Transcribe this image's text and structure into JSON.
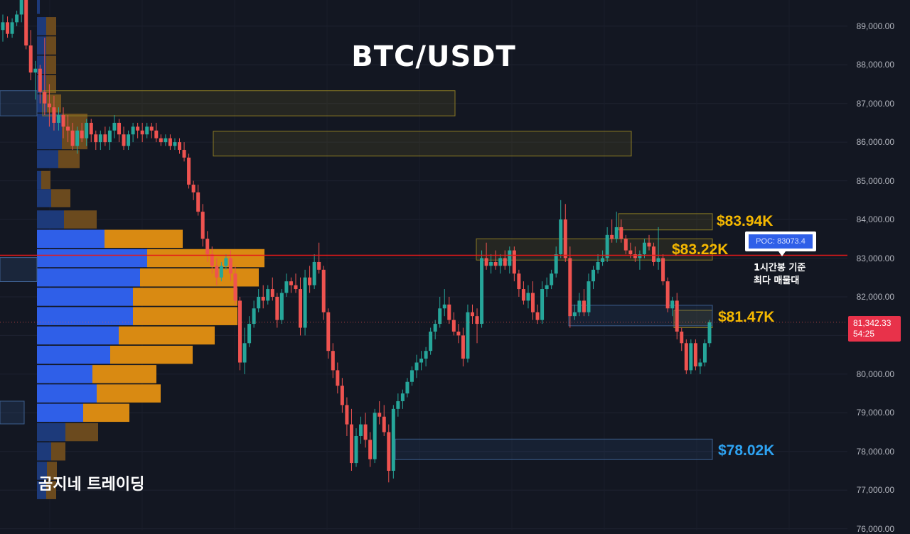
{
  "header": {
    "title": "BTC/USDT"
  },
  "brand": {
    "label": "곰지네 트레이딩"
  },
  "chart_data": {
    "type": "candlestick",
    "title": "BTC/USDT",
    "timeframe_note": "1시간봉 기준",
    "y_axis": {
      "range": [
        76000,
        89800
      ],
      "ticks": [
        89000,
        88000,
        87000,
        86000,
        85000,
        84000,
        83000,
        82000,
        81000,
        80000,
        79000,
        78000,
        77000,
        76000
      ],
      "tick_labels": [
        "89,000.00",
        "88,000.00",
        "87,000.00",
        "86,000.00",
        "85,000.00",
        "84,000.00",
        "83,000.00",
        "82,000.00",
        "81,000.00",
        "80,000.00",
        "79,000.00",
        "78,000.00",
        "77,000.00",
        "76,000.00"
      ]
    },
    "current_price": {
      "value": 81342.33,
      "label": "81,342.33",
      "countdown": "54:25"
    },
    "poc": {
      "value": 83073.4,
      "badge": "POC: 83073.4",
      "note_line1": "1시간봉 기준",
      "note_line2": "최다 매물대"
    },
    "levels": [
      {
        "label": "$83.94K",
        "value": 83940,
        "color": "#f5b800"
      },
      {
        "label": "$83.22K",
        "value": 83220,
        "color": "#f5b800"
      },
      {
        "label": "$81.47K",
        "value": 81470,
        "color": "#f5b800"
      },
      {
        "label": "$78.02K",
        "value": 78020,
        "color": "#2ea3f2"
      }
    ],
    "zones": [
      {
        "from": 86680,
        "to": 87330,
        "kind": "yellow"
      },
      {
        "from": 85640,
        "to": 86280,
        "kind": "yellow"
      },
      {
        "from": 83730,
        "to": 84150,
        "kind": "yellow"
      },
      {
        "from": 82950,
        "to": 83500,
        "kind": "yellow"
      },
      {
        "from": 81200,
        "to": 81650,
        "kind": "yellow"
      },
      {
        "from": 81250,
        "to": 81780,
        "kind": "blue"
      },
      {
        "from": 77790,
        "to": 78320,
        "kind": "blue"
      }
    ],
    "volume_profile": {
      "bins": [
        {
          "price": 89550,
          "buy": 4,
          "sell": 0
        },
        {
          "price": 89000,
          "buy": 13,
          "sell": 14
        },
        {
          "price": 88500,
          "buy": 13,
          "sell": 14
        },
        {
          "price": 88000,
          "buy": 13,
          "sell": 14
        },
        {
          "price": 87500,
          "buy": 13,
          "sell": 14
        },
        {
          "price": 87000,
          "buy": 14,
          "sell": 20
        },
        {
          "price": 86500,
          "buy": 35,
          "sell": 36
        },
        {
          "price": 86050,
          "buy": 35,
          "sell": 36
        },
        {
          "price": 85560,
          "buy": 30,
          "sell": 30
        },
        {
          "price": 85020,
          "buy": 6,
          "sell": 13
        },
        {
          "price": 84550,
          "buy": 20,
          "sell": 27
        },
        {
          "price": 84000,
          "buy": 38,
          "sell": 46
        },
        {
          "price": 83500,
          "buy": 95,
          "sell": 110
        },
        {
          "price": 83000,
          "buy": 155,
          "sell": 165
        },
        {
          "price": 82500,
          "buy": 145,
          "sell": 167
        },
        {
          "price": 82000,
          "buy": 135,
          "sell": 147
        },
        {
          "price": 81500,
          "buy": 135,
          "sell": 147
        },
        {
          "price": 81000,
          "buy": 115,
          "sell": 135
        },
        {
          "price": 80500,
          "buy": 103,
          "sell": 116
        },
        {
          "price": 80000,
          "buy": 78,
          "sell": 90
        },
        {
          "price": 79500,
          "buy": 84,
          "sell": 90
        },
        {
          "price": 79000,
          "buy": 65,
          "sell": 65
        },
        {
          "price": 78500,
          "buy": 40,
          "sell": 46
        },
        {
          "price": 78000,
          "buy": 20,
          "sell": 20
        },
        {
          "price": 77500,
          "buy": 14,
          "sell": 14
        },
        {
          "price": 77000,
          "buy": 13,
          "sell": 14
        }
      ]
    },
    "candles": [
      [
        88900,
        89300,
        88600,
        89100
      ],
      [
        89100,
        89250,
        88700,
        88800
      ],
      [
        88800,
        89200,
        88700,
        89100
      ],
      [
        89100,
        89400,
        89000,
        89300
      ],
      [
        89300,
        89900,
        89100,
        89800
      ],
      [
        89800,
        89900,
        88400,
        88500
      ],
      [
        88500,
        88900,
        87600,
        87800
      ],
      [
        87800,
        88100,
        87100,
        87900
      ],
      [
        87900,
        88000,
        87000,
        87300
      ],
      [
        87300,
        88700,
        86700,
        87000
      ],
      [
        87000,
        87500,
        86400,
        86900
      ],
      [
        86900,
        87200,
        86300,
        86500
      ],
      [
        86500,
        86900,
        86300,
        86700
      ],
      [
        86700,
        86900,
        86100,
        86400
      ],
      [
        86400,
        86700,
        86000,
        86300
      ],
      [
        86300,
        86500,
        85800,
        85900
      ],
      [
        85900,
        86400,
        85700,
        86300
      ],
      [
        86300,
        86500,
        86000,
        86100
      ],
      [
        86100,
        86600,
        85900,
        86500
      ],
      [
        86500,
        86600,
        86000,
        86200
      ],
      [
        86200,
        86300,
        85800,
        86000
      ],
      [
        86000,
        86300,
        85800,
        86200
      ],
      [
        86200,
        86400,
        85900,
        86000
      ],
      [
        86000,
        86400,
        85800,
        86300
      ],
      [
        86300,
        86700,
        86100,
        86500
      ],
      [
        86500,
        86600,
        86000,
        86200
      ],
      [
        86200,
        86400,
        85800,
        85900
      ],
      [
        85900,
        86300,
        85800,
        86200
      ],
      [
        86200,
        86500,
        86000,
        86400
      ],
      [
        86400,
        86500,
        86100,
        86300
      ],
      [
        86300,
        86500,
        86000,
        86200
      ],
      [
        86200,
        86500,
        86100,
        86400
      ],
      [
        86400,
        86500,
        86100,
        86300
      ],
      [
        86300,
        86500,
        86000,
        86100
      ],
      [
        86100,
        86200,
        85900,
        86000
      ],
      [
        86000,
        86200,
        85900,
        86100
      ],
      [
        86100,
        86200,
        85800,
        85900
      ],
      [
        85900,
        86100,
        85800,
        86000
      ],
      [
        86000,
        86100,
        85700,
        85800
      ],
      [
        85800,
        86000,
        85500,
        85600
      ],
      [
        85600,
        85700,
        84800,
        84900
      ],
      [
        84900,
        85000,
        84500,
        84700
      ],
      [
        84700,
        84900,
        84100,
        84200
      ],
      [
        84200,
        84400,
        83300,
        83500
      ],
      [
        83500,
        83700,
        82900,
        83100
      ],
      [
        83100,
        83300,
        82600,
        82800
      ],
      [
        82800,
        83000,
        82300,
        82500
      ],
      [
        82500,
        82900,
        82400,
        82800
      ],
      [
        82800,
        83100,
        82700,
        83000
      ],
      [
        83000,
        83200,
        82400,
        82600
      ],
      [
        82600,
        82800,
        81800,
        81900
      ],
      [
        81900,
        82000,
        80100,
        80300
      ],
      [
        80300,
        81200,
        80000,
        80800
      ],
      [
        80800,
        81500,
        80700,
        81300
      ],
      [
        81300,
        81900,
        81200,
        81700
      ],
      [
        81700,
        82200,
        81600,
        82000
      ],
      [
        82000,
        82300,
        81700,
        81900
      ],
      [
        81900,
        82300,
        81800,
        82200
      ],
      [
        82200,
        82500,
        81900,
        82000
      ],
      [
        82000,
        82100,
        81200,
        81400
      ],
      [
        81400,
        82200,
        81300,
        82100
      ],
      [
        82100,
        82600,
        82000,
        82400
      ],
      [
        82400,
        82500,
        82100,
        82300
      ],
      [
        82300,
        82600,
        82100,
        82200
      ],
      [
        82200,
        82500,
        81000,
        81200
      ],
      [
        81200,
        82700,
        81000,
        82500
      ],
      [
        82500,
        82800,
        82100,
        82300
      ],
      [
        82300,
        83100,
        82200,
        82900
      ],
      [
        82900,
        83400,
        82600,
        82700
      ],
      [
        82700,
        82800,
        81400,
        81600
      ],
      [
        81600,
        81700,
        80400,
        80600
      ],
      [
        80600,
        80800,
        79900,
        80100
      ],
      [
        80100,
        80300,
        79500,
        79700
      ],
      [
        79700,
        79900,
        79000,
        79200
      ],
      [
        79200,
        79400,
        78400,
        78700
      ],
      [
        78700,
        79100,
        77500,
        77700
      ],
      [
        77700,
        78600,
        77600,
        78400
      ],
      [
        78400,
        78900,
        78200,
        78700
      ],
      [
        78700,
        79000,
        78100,
        78300
      ],
      [
        78300,
        78500,
        77600,
        77800
      ],
      [
        77800,
        79100,
        77700,
        79000
      ],
      [
        79000,
        79300,
        78700,
        78900
      ],
      [
        78900,
        79200,
        78400,
        78500
      ],
      [
        78500,
        78700,
        77200,
        77500
      ],
      [
        77500,
        79200,
        77300,
        79100
      ],
      [
        79100,
        79500,
        78900,
        79300
      ],
      [
        79300,
        79600,
        79100,
        79500
      ],
      [
        79500,
        79900,
        79400,
        79800
      ],
      [
        79800,
        80200,
        79700,
        80100
      ],
      [
        80100,
        80500,
        79900,
        80300
      ],
      [
        80300,
        80600,
        80100,
        80400
      ],
      [
        80400,
        80700,
        80200,
        80600
      ],
      [
        80600,
        81200,
        80500,
        81100
      ],
      [
        81100,
        81400,
        80900,
        81300
      ],
      [
        81300,
        82000,
        81200,
        81700
      ],
      [
        81700,
        82200,
        81500,
        81800
      ],
      [
        81800,
        82000,
        81300,
        81400
      ],
      [
        81400,
        81600,
        81000,
        81100
      ],
      [
        81100,
        81300,
        80800,
        81000
      ],
      [
        81000,
        81200,
        80200,
        80400
      ],
      [
        80400,
        81800,
        80300,
        81600
      ],
      [
        81600,
        81800,
        81300,
        81500
      ],
      [
        81500,
        81700,
        80800,
        81300
      ],
      [
        81300,
        83200,
        81200,
        83000
      ],
      [
        83000,
        83400,
        82700,
        82800
      ],
      [
        82800,
        83100,
        82600,
        82900
      ],
      [
        82900,
        83200,
        82700,
        82800
      ],
      [
        82800,
        83100,
        82600,
        83000
      ],
      [
        83000,
        83200,
        82700,
        82800
      ],
      [
        82800,
        83300,
        82600,
        83200
      ],
      [
        83200,
        83300,
        82400,
        82600
      ],
      [
        82600,
        82700,
        82000,
        82200
      ],
      [
        82200,
        82400,
        81800,
        81900
      ],
      [
        81900,
        82300,
        81700,
        82100
      ],
      [
        82100,
        82400,
        81400,
        81600
      ],
      [
        81600,
        81800,
        81300,
        81400
      ],
      [
        81400,
        82400,
        81300,
        82200
      ],
      [
        82200,
        82500,
        82000,
        82300
      ],
      [
        82300,
        82700,
        82200,
        82600
      ],
      [
        82600,
        83300,
        82500,
        83100
      ],
      [
        83100,
        84500,
        83000,
        84000
      ],
      [
        84000,
        84400,
        82900,
        83000
      ],
      [
        83000,
        83300,
        81200,
        81500
      ],
      [
        81500,
        81800,
        81400,
        81600
      ],
      [
        81600,
        82100,
        81500,
        81900
      ],
      [
        81900,
        82200,
        81500,
        81600
      ],
      [
        81600,
        82600,
        81500,
        82400
      ],
      [
        82400,
        82800,
        82200,
        82700
      ],
      [
        82700,
        83100,
        82600,
        82900
      ],
      [
        82900,
        83200,
        82800,
        83000
      ],
      [
        83000,
        83800,
        82900,
        83600
      ],
      [
        83600,
        84000,
        83400,
        83500
      ],
      [
        83500,
        84200,
        83400,
        83800
      ],
      [
        83800,
        84000,
        83400,
        83500
      ],
      [
        83500,
        83600,
        83100,
        83200
      ],
      [
        83200,
        83400,
        83000,
        83100
      ],
      [
        83100,
        83300,
        82900,
        83000
      ],
      [
        83000,
        83200,
        82700,
        83100
      ],
      [
        83100,
        83500,
        83000,
        83400
      ],
      [
        83400,
        83600,
        83200,
        83300
      ],
      [
        83300,
        83400,
        82800,
        82900
      ],
      [
        82900,
        83800,
        82700,
        83000
      ],
      [
        83000,
        83100,
        82300,
        82400
      ],
      [
        82400,
        82500,
        81600,
        81700
      ],
      [
        81700,
        82000,
        81500,
        81900
      ],
      [
        81900,
        82100,
        80900,
        81100
      ],
      [
        81100,
        81200,
        80600,
        80800
      ],
      [
        80800,
        80900,
        80000,
        80100
      ],
      [
        80100,
        80900,
        80000,
        80800
      ],
      [
        80800,
        80900,
        80100,
        80200
      ],
      [
        80200,
        80400,
        80000,
        80300
      ],
      [
        80300,
        80900,
        80200,
        80800
      ],
      [
        80800,
        81400,
        80700,
        81342
      ]
    ]
  }
}
